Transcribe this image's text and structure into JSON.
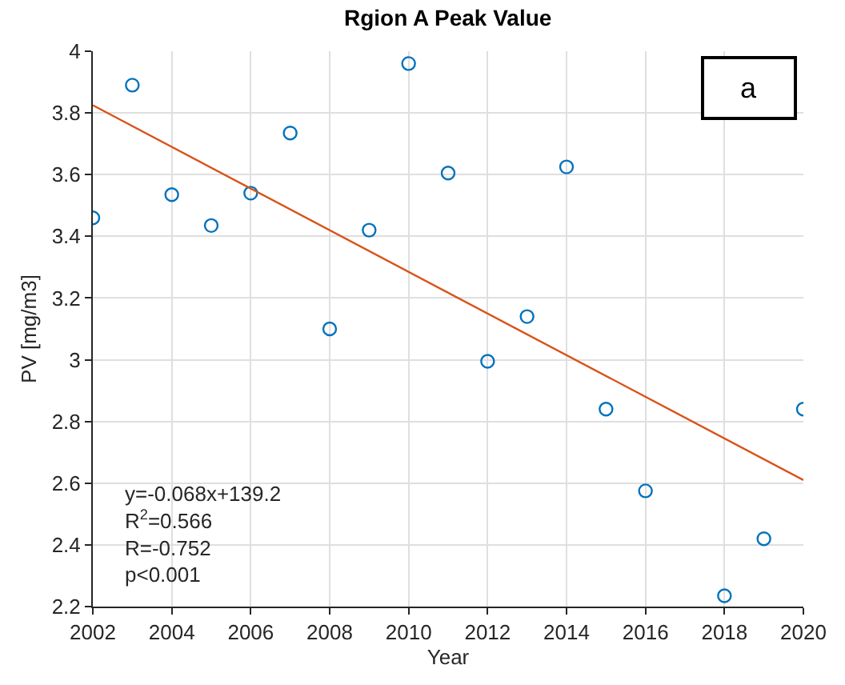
{
  "chart_data": {
    "type": "scatter",
    "title": "Rgion A Peak Value",
    "xlabel": "Year",
    "ylabel": "PV [mg/m3]",
    "x": [
      2002,
      2003,
      2004,
      2005,
      2006,
      2007,
      2008,
      2009,
      2010,
      2011,
      2012,
      2013,
      2014,
      2015,
      2016,
      2018,
      2019,
      2020
    ],
    "series": [
      {
        "color": "#0072bd",
        "values": [
          3.46,
          3.89,
          3.535,
          3.435,
          3.54,
          3.735,
          3.1,
          3.42,
          3.96,
          3.605,
          2.995,
          3.14,
          3.625,
          2.84,
          2.575,
          2.235,
          2.42,
          2.84
        ]
      },
      {
        "type": "line",
        "color": "#d95319",
        "x": [
          2002,
          2020
        ],
        "values": [
          3.825,
          2.61
        ],
        "line_style": "solid",
        "marker": "none"
      }
    ],
    "xlim": [
      2002,
      2020
    ],
    "xticks": [
      2002,
      2004,
      2006,
      2008,
      2010,
      2012,
      2014,
      2016,
      2018,
      2020
    ],
    "ylim": [
      2.2,
      4
    ],
    "yticks": [
      2.2,
      2.4,
      2.6,
      2.8,
      3,
      3.2,
      3.4,
      3.6,
      3.8,
      4
    ],
    "grid": true,
    "marker": "circle",
    "annotations": [
      "a",
      "y=-0.068x+139.2\nR$^{2}$=0.566\nR=-0.752\np<0.001"
    ]
  }
}
